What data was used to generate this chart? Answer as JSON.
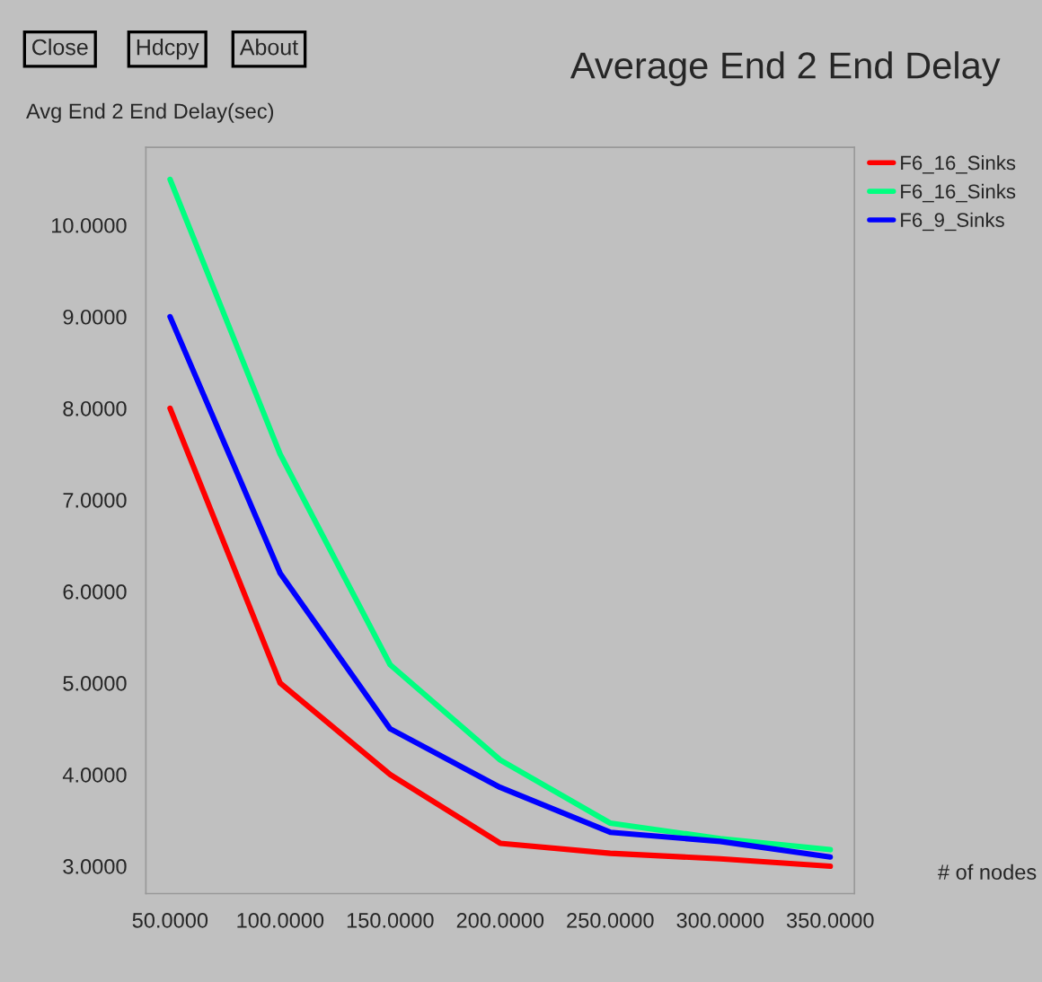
{
  "chart_data": {
    "type": "line",
    "title": "Average End 2 End Delay",
    "xlabel": "# of nodes",
    "ylabel": "Avg End 2 End Delay(sec)",
    "annotations": [
      "Close",
      "Hdcpy",
      "About"
    ],
    "x": [
      50,
      100,
      150,
      200,
      250,
      300,
      350
    ],
    "series": [
      {
        "name": "F6_16_Sinks",
        "color": "#ff0000",
        "values": [
          8.0,
          5.0,
          4.0,
          3.25,
          3.14,
          3.08,
          3.0
        ]
      },
      {
        "name": "F6_16_Sinks",
        "color": "#00ff80",
        "values": [
          10.5,
          7.5,
          5.2,
          4.16,
          3.47,
          3.3,
          3.18
        ]
      },
      {
        "name": "F6_9_Sinks",
        "color": "#0000ff",
        "values": [
          9.0,
          6.2,
          4.5,
          3.86,
          3.37,
          3.27,
          3.1
        ]
      }
    ],
    "xlim": [
      39,
      361
    ],
    "ylim": [
      2.7,
      10.85
    ],
    "xticks": [
      {
        "value": 50,
        "label": "50.0000"
      },
      {
        "value": 100,
        "label": "100.0000"
      },
      {
        "value": 150,
        "label": "150.0000"
      },
      {
        "value": 200,
        "label": "200.0000"
      },
      {
        "value": 250,
        "label": "250.0000"
      },
      {
        "value": 300,
        "label": "300.0000"
      },
      {
        "value": 350,
        "label": "350.0000"
      }
    ],
    "yticks": [
      {
        "value": 3,
        "label": "3.0000"
      },
      {
        "value": 4,
        "label": "4.0000"
      },
      {
        "value": 5,
        "label": "5.0000"
      },
      {
        "value": 6,
        "label": "6.0000"
      },
      {
        "value": 7,
        "label": "7.0000"
      },
      {
        "value": 8,
        "label": "8.0000"
      },
      {
        "value": 9,
        "label": "9.0000"
      },
      {
        "value": 10,
        "label": "10.0000"
      }
    ],
    "grid": false,
    "legend": "right",
    "line_style": "solid",
    "marker": "none"
  }
}
